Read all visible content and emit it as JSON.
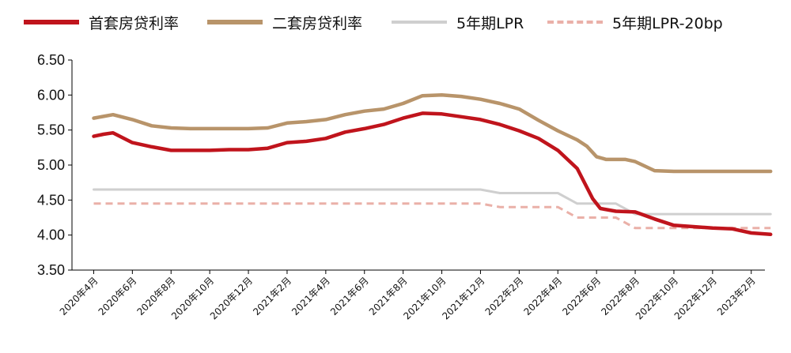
{
  "chart_data": {
    "type": "line",
    "title": "",
    "xlabel": "",
    "ylabel": "",
    "ylim": [
      3.5,
      6.5
    ],
    "yticks": [
      "6.50",
      "6.00",
      "5.50",
      "5.00",
      "4.50",
      "4.00",
      "3.50"
    ],
    "x_range": [
      0,
      36
    ],
    "xticks": [
      {
        "x": 1,
        "label": "2020年4月"
      },
      {
        "x": 3,
        "label": "2020年6月"
      },
      {
        "x": 5,
        "label": "2020年8月"
      },
      {
        "x": 7,
        "label": "2020年10月"
      },
      {
        "x": 9,
        "label": "2020年12月"
      },
      {
        "x": 11,
        "label": "2021年2月"
      },
      {
        "x": 13,
        "label": "2021年4月"
      },
      {
        "x": 15,
        "label": "2021年6月"
      },
      {
        "x": 17,
        "label": "2021年8月"
      },
      {
        "x": 19,
        "label": "2021年10月"
      },
      {
        "x": 21,
        "label": "2021年12月"
      },
      {
        "x": 23,
        "label": "2022年2月"
      },
      {
        "x": 25,
        "label": "2022年4月"
      },
      {
        "x": 27,
        "label": "2022年6月"
      },
      {
        "x": 29,
        "label": "2022年8月"
      },
      {
        "x": 31,
        "label": "2022年10月"
      },
      {
        "x": 33,
        "label": "2022年12月"
      },
      {
        "x": 35,
        "label": "2023年2月"
      }
    ],
    "series": [
      {
        "name": "首套房贷利率",
        "color": "#c0141c",
        "style": "solid",
        "points": [
          [
            1,
            5.41
          ],
          [
            1.5,
            5.44
          ],
          [
            2,
            5.46
          ],
          [
            3,
            5.32
          ],
          [
            4,
            5.26
          ],
          [
            5,
            5.21
          ],
          [
            6,
            5.21
          ],
          [
            7,
            5.21
          ],
          [
            8,
            5.22
          ],
          [
            9,
            5.22
          ],
          [
            10,
            5.24
          ],
          [
            11,
            5.32
          ],
          [
            12,
            5.34
          ],
          [
            13,
            5.38
          ],
          [
            14,
            5.47
          ],
          [
            15,
            5.52
          ],
          [
            16,
            5.58
          ],
          [
            17,
            5.67
          ],
          [
            18,
            5.74
          ],
          [
            19,
            5.73
          ],
          [
            20,
            5.69
          ],
          [
            21,
            5.65
          ],
          [
            22,
            5.58
          ],
          [
            23,
            5.49
          ],
          [
            24,
            5.38
          ],
          [
            25,
            5.21
          ],
          [
            26,
            4.95
          ],
          [
            26.8,
            4.52
          ],
          [
            27.2,
            4.38
          ],
          [
            28,
            4.34
          ],
          [
            29,
            4.33
          ],
          [
            30,
            4.23
          ],
          [
            31,
            4.14
          ],
          [
            32,
            4.12
          ],
          [
            33,
            4.1
          ],
          [
            34,
            4.09
          ],
          [
            35,
            4.03
          ],
          [
            36,
            4.01
          ]
        ]
      },
      {
        "name": "二套房贷利率",
        "color": "#b8946a",
        "style": "solid",
        "points": [
          [
            1,
            5.67
          ],
          [
            2,
            5.72
          ],
          [
            3,
            5.65
          ],
          [
            4,
            5.56
          ],
          [
            5,
            5.53
          ],
          [
            6,
            5.52
          ],
          [
            7,
            5.52
          ],
          [
            8,
            5.52
          ],
          [
            9,
            5.52
          ],
          [
            10,
            5.53
          ],
          [
            11,
            5.6
          ],
          [
            12,
            5.62
          ],
          [
            13,
            5.65
          ],
          [
            14,
            5.72
          ],
          [
            15,
            5.77
          ],
          [
            16,
            5.8
          ],
          [
            17,
            5.88
          ],
          [
            18,
            5.99
          ],
          [
            19,
            6.0
          ],
          [
            20,
            5.98
          ],
          [
            21,
            5.94
          ],
          [
            22,
            5.88
          ],
          [
            23,
            5.8
          ],
          [
            24,
            5.64
          ],
          [
            25,
            5.49
          ],
          [
            26,
            5.36
          ],
          [
            26.5,
            5.27
          ],
          [
            27,
            5.12
          ],
          [
            27.5,
            5.08
          ],
          [
            28.5,
            5.08
          ],
          [
            29,
            5.05
          ],
          [
            30,
            4.92
          ],
          [
            31,
            4.91
          ],
          [
            32,
            4.91
          ],
          [
            33,
            4.91
          ],
          [
            34,
            4.91
          ],
          [
            35,
            4.91
          ],
          [
            36,
            4.91
          ]
        ]
      },
      {
        "name": "5年期LPR",
        "color": "#cfcfcf",
        "style": "solid",
        "points": [
          [
            1,
            4.65
          ],
          [
            21,
            4.65
          ],
          [
            22,
            4.6
          ],
          [
            25,
            4.6
          ],
          [
            26,
            4.45
          ],
          [
            28,
            4.45
          ],
          [
            29,
            4.3
          ],
          [
            36,
            4.3
          ]
        ]
      },
      {
        "name": "5年期LPR-20bp",
        "color": "#eab0a8",
        "style": "dashed",
        "points": [
          [
            1,
            4.45
          ],
          [
            21,
            4.45
          ],
          [
            22,
            4.4
          ],
          [
            25,
            4.4
          ],
          [
            26,
            4.25
          ],
          [
            28,
            4.25
          ],
          [
            29,
            4.1
          ],
          [
            36,
            4.1
          ]
        ]
      }
    ]
  }
}
